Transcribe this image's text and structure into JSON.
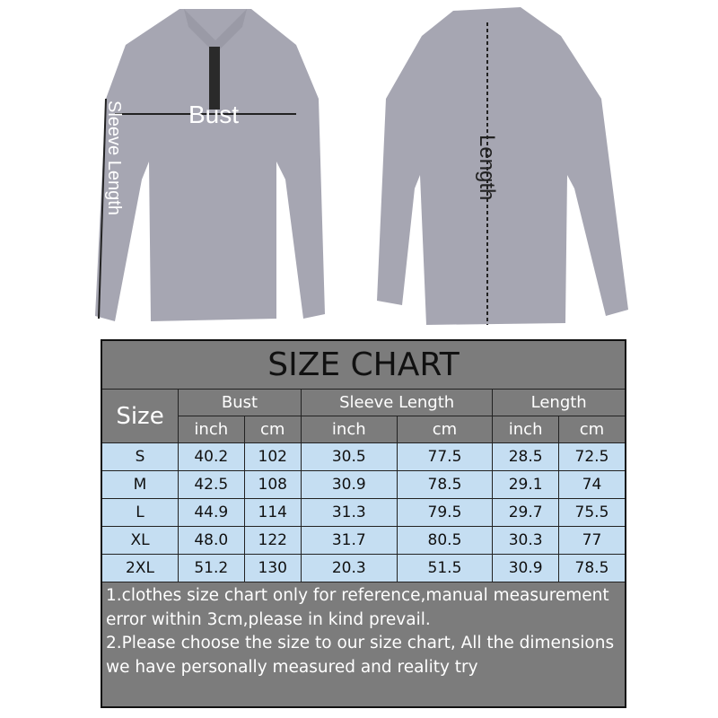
{
  "labels": {
    "bust": "Bust",
    "sleeve_length": "Sleeve Length",
    "length": "Length"
  },
  "colors": {
    "shirt": "#a6a6b2",
    "header_bg": "#7c7c7c",
    "row_bg": "#c5def2"
  },
  "table": {
    "title": "SIZE CHART",
    "size_header": "Size",
    "groups": [
      "Bust",
      "Sleeve Length",
      "Length"
    ],
    "units": [
      "inch",
      "cm",
      "inch",
      "cm",
      "inch",
      "cm"
    ],
    "rows": [
      [
        "S",
        "40.2",
        "102",
        "30.5",
        "77.5",
        "28.5",
        "72.5"
      ],
      [
        "M",
        "42.5",
        "108",
        "30.9",
        "78.5",
        "29.1",
        "74"
      ],
      [
        "L",
        "44.9",
        "114",
        "31.3",
        "79.5",
        "29.7",
        "75.5"
      ],
      [
        "XL",
        "48.0",
        "122",
        "31.7",
        "80.5",
        "30.3",
        "77"
      ],
      [
        "2XL",
        "51.2",
        "130",
        "20.3",
        "51.5",
        "30.9",
        "78.5"
      ]
    ],
    "notes": [
      "1.clothes size chart only for reference,manual measurement error within 3cm,please in kind prevail.",
      "2.Please choose the size to our size chart, All the dimensions we have personally measured and reality try"
    ]
  }
}
